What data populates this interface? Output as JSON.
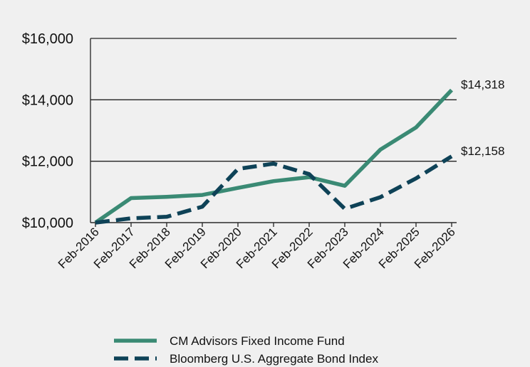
{
  "chart_data": {
    "type": "line",
    "title": "",
    "xlabel": "",
    "ylabel": "",
    "categories": [
      "Feb-2016",
      "Feb-2017",
      "Feb-2018",
      "Feb-2019",
      "Feb-2020",
      "Feb-2021",
      "Feb-2022",
      "Feb-2023",
      "Feb-2024",
      "Feb-2025",
      "Feb-2026"
    ],
    "ylim": [
      10000,
      16000
    ],
    "y_ticks": [
      10000,
      12000,
      14000,
      16000
    ],
    "y_tick_labels": [
      "$10,000",
      "$12,000",
      "$14,000",
      "$16,000"
    ],
    "grid": "horizontal",
    "legend_position": "bottom",
    "series": [
      {
        "name": "CM Advisors Fixed Income Fund",
        "style": "solid",
        "color": "#3a8a74",
        "values": [
          10000,
          10800,
          10840,
          10900,
          11130,
          11350,
          11480,
          11200,
          12380,
          13100,
          14318
        ],
        "end_label": "$14,318"
      },
      {
        "name": "Bloomberg U.S. Aggregate Bond Index",
        "style": "dashed",
        "color": "#0e4257",
        "values": [
          10000,
          10140,
          10190,
          10520,
          11750,
          11920,
          11580,
          10450,
          10830,
          11440,
          12158
        ],
        "end_label": "$12,158"
      }
    ]
  }
}
